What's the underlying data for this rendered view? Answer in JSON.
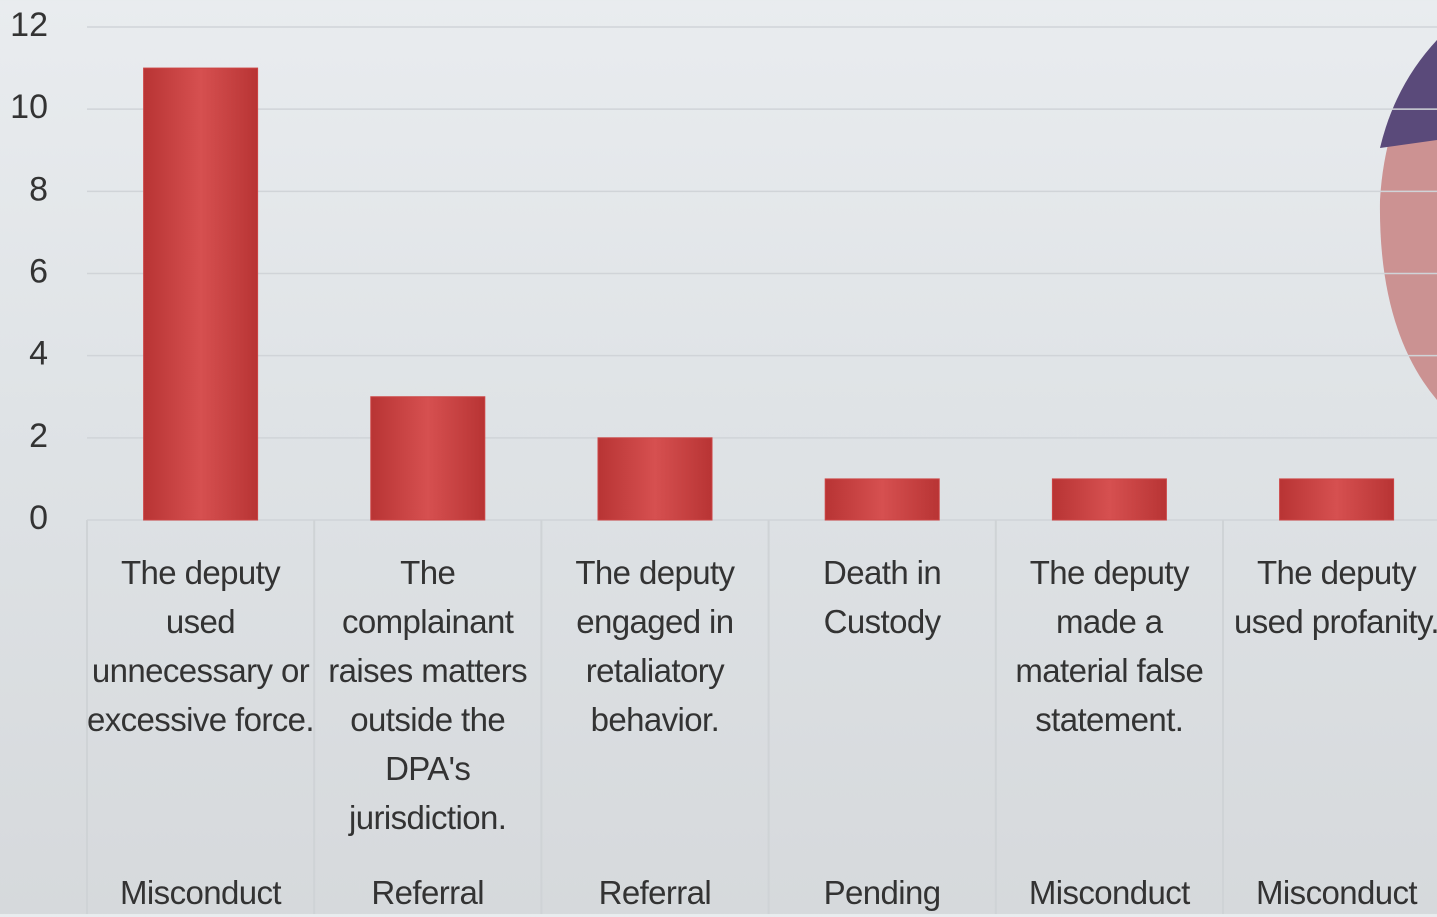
{
  "chart_data": {
    "type": "bar",
    "categories": [
      "The deputy used unnecessary or excessive force.",
      "The complainant raises matters outside the DPA's jurisdiction.",
      "The deputy engaged in retaliatory behavior.",
      "Death in Custody",
      "The deputy made a material false statement.",
      "The deputy used profanity."
    ],
    "groups": [
      "Misconduct",
      "Referral",
      "Referral",
      "Pending",
      "Misconduct",
      "Misconduct"
    ],
    "values": [
      11,
      3,
      2,
      1,
      1,
      1
    ],
    "color": "#cc4444",
    "ylim": [
      0,
      12
    ],
    "yticks": [
      0,
      2,
      4,
      6,
      8,
      10,
      12
    ],
    "grid": true
  }
}
